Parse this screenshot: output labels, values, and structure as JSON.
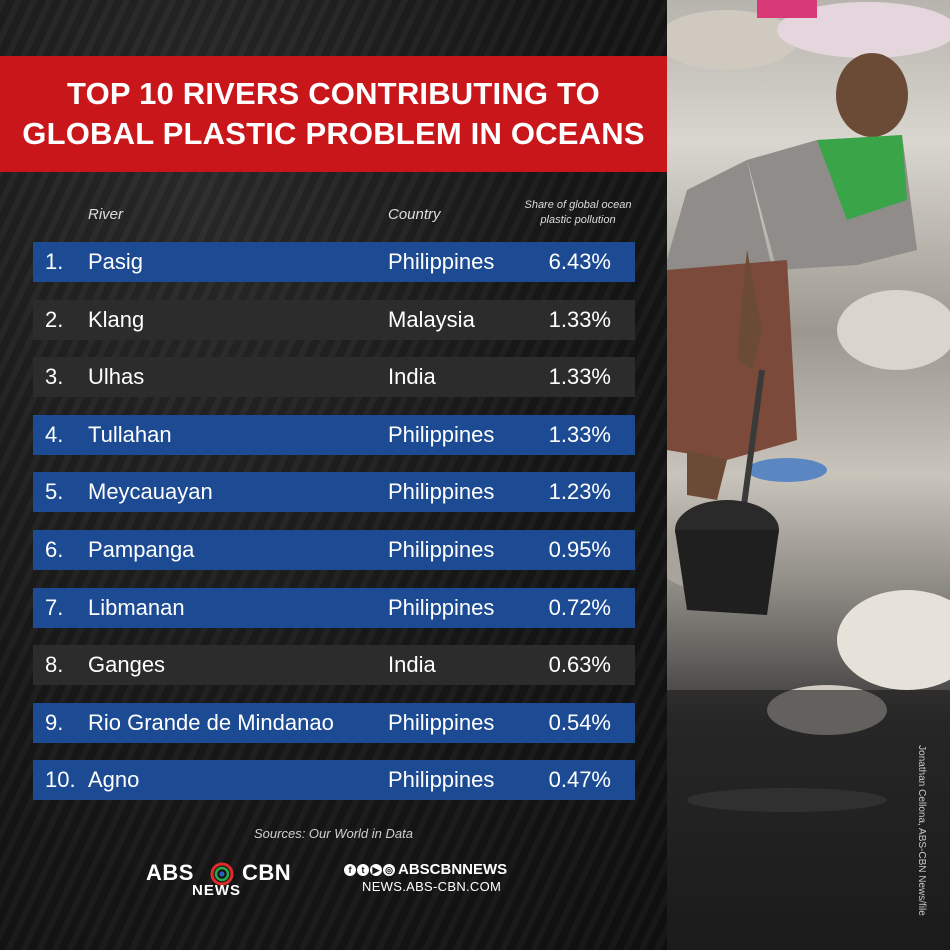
{
  "title": {
    "line1": "TOP 10 RIVERS CONTRIBUTING TO",
    "line2": "GLOBAL PLASTIC PROBLEM IN OCEANS"
  },
  "headers": {
    "river": "River",
    "country": "Country",
    "share_line1": "Share of global ocean",
    "share_line2": "plastic pollution"
  },
  "chart_data": {
    "type": "table",
    "title": "TOP 10 RIVERS CONTRIBUTING TO GLOBAL PLASTIC PROBLEM IN OCEANS",
    "columns": [
      "River",
      "Country",
      "Share of global ocean plastic pollution"
    ],
    "rows": [
      {
        "rank": "1.",
        "river": "Pasig",
        "country": "Philippines",
        "share": "6.43%",
        "value": 6.43
      },
      {
        "rank": "2.",
        "river": "Klang",
        "country": "Malaysia",
        "share": "1.33%",
        "value": 1.33
      },
      {
        "rank": "3.",
        "river": "Ulhas",
        "country": "India",
        "share": "1.33%",
        "value": 1.33
      },
      {
        "rank": "4.",
        "river": "Tullahan",
        "country": "Philippines",
        "share": "1.33%",
        "value": 1.33
      },
      {
        "rank": "5.",
        "river": "Meycauayan",
        "country": "Philippines",
        "share": "1.23%",
        "value": 1.23
      },
      {
        "rank": "6.",
        "river": "Pampanga",
        "country": "Philippines",
        "share": "0.95%",
        "value": 0.95
      },
      {
        "rank": "7.",
        "river": "Libmanan",
        "country": "Philippines",
        "share": "0.72%",
        "value": 0.72
      },
      {
        "rank": "8.",
        "river": "Ganges",
        "country": "India",
        "share": "0.63%",
        "value": 0.63
      },
      {
        "rank": "9.",
        "river": "Rio Grande de Mindanao",
        "country": "Philippines",
        "share": "0.54%",
        "value": 0.54
      },
      {
        "rank": "10.",
        "river": "Agno",
        "country": "Philippines",
        "share": "0.47%",
        "value": 0.47
      }
    ]
  },
  "colors": {
    "title_band": "#c8161b",
    "row_highlight": "#1c4b93",
    "row_default": "#2c2c2c"
  },
  "source": "Sources: Our World in Data",
  "brand": {
    "abs": "ABS",
    "cbn": "CBN",
    "news": "NEWS",
    "social_handle": "ABSCBNNEWS",
    "url": "NEWS.ABS-CBN.COM"
  },
  "photo_credit": "Jonathan Cellona, ABS-CBN News/file"
}
